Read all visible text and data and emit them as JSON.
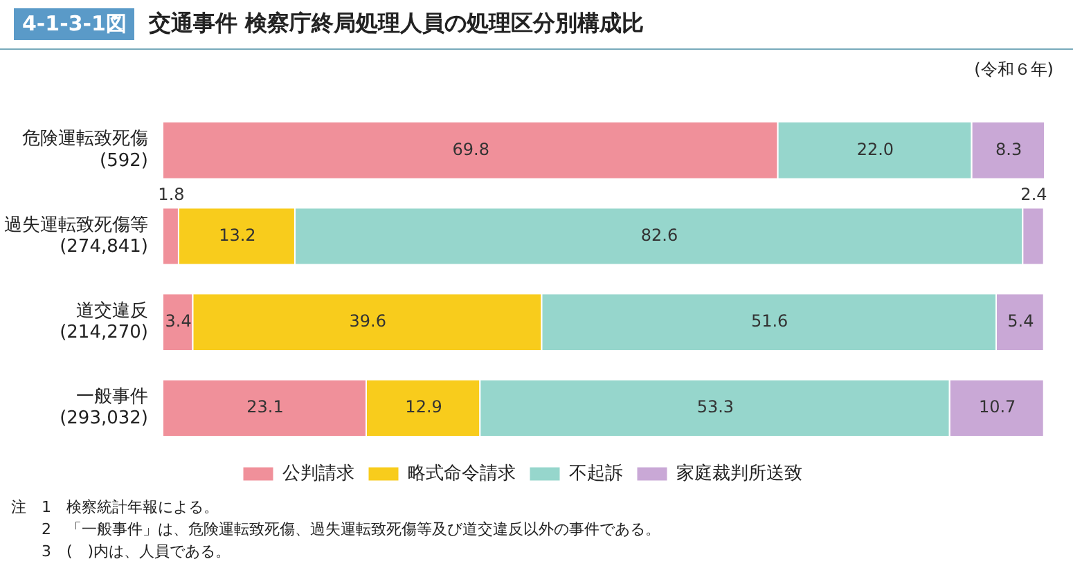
{
  "chart_data": {
    "type": "bar",
    "orientation": "horizontal",
    "stacked": true,
    "subtitle": "4-1-3-1図",
    "title": "交通事件 検察庁終局処理人員の処理区分別構成比",
    "categories": [
      "危険運転致死傷\n(592)",
      "過失運転致死傷等\n(274,841)",
      "道交違反\n(214,270)",
      "一般事件\n(293,032)"
    ],
    "series": [
      {
        "name": "公判請求",
        "color": "#f0909a",
        "values": [
          69.8,
          1.8,
          3.4,
          23.1
        ],
        "value_labels": [
          "69.8",
          "1.8",
          "3.4",
          "23.1"
        ]
      },
      {
        "name": "略式命令請求",
        "color": "#f8cc1c",
        "values": [
          null,
          13.2,
          39.6,
          12.9
        ],
        "value_labels": [
          null,
          "13.2",
          "39.6",
          "12.9"
        ]
      },
      {
        "name": "不起訴",
        "color": "#96d6cc",
        "values": [
          22.0,
          82.6,
          51.6,
          53.3
        ],
        "value_labels": [
          "22.0",
          "82.6",
          "51.6",
          "53.3"
        ]
      },
      {
        "name": "家庭裁判所送致",
        "color": "#c9a8d6",
        "values": [
          8.3,
          2.4,
          5.4,
          10.7
        ],
        "value_labels": [
          "8.3",
          "2.4",
          "5.4",
          "10.7"
        ]
      }
    ],
    "legend": "bottom",
    "tick_labels": "y",
    "annotations": [
      "(令和６年)",
      "注　1　検察統計年報による。",
      "2　「一般事件」は、危険運転致死傷、過失運転致死傷等及び道交違反以外の事件である。",
      "3　(　)内は、人員である。"
    ]
  }
}
